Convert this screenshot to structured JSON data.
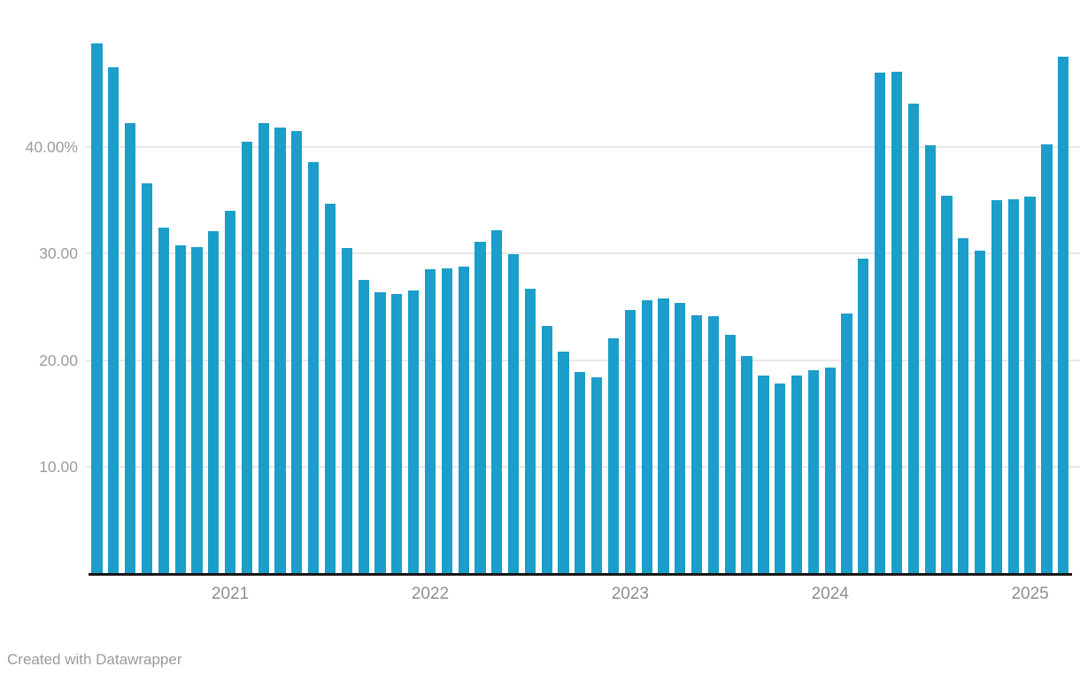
{
  "chart_data": {
    "type": "bar",
    "title": "",
    "xlabel": "",
    "ylabel": "",
    "unit": "percent",
    "ylim": [
      0,
      50.5
    ],
    "grid": "horizontal",
    "legend": "none",
    "values": [
      49.7,
      47.4,
      42.2,
      36.6,
      32.4,
      30.8,
      30.6,
      32.1,
      34.0,
      40.5,
      42.2,
      41.8,
      41.5,
      38.6,
      34.7,
      30.5,
      27.5,
      26.4,
      26.2,
      26.5,
      28.5,
      28.6,
      28.8,
      31.1,
      32.2,
      29.9,
      26.7,
      23.2,
      20.8,
      18.9,
      18.4,
      22.1,
      24.7,
      25.6,
      25.8,
      25.4,
      24.2,
      24.1,
      22.4,
      20.4,
      18.6,
      17.8,
      18.6,
      19.1,
      19.3,
      24.4,
      29.5,
      46.9,
      47.0,
      44.0,
      40.1,
      35.4,
      31.4,
      30.3,
      35.0,
      35.1,
      35.3,
      40.2,
      48.4
    ],
    "y_ticks": [
      {
        "value": 40,
        "label": "40.00%"
      },
      {
        "value": 30,
        "label": "30.00"
      },
      {
        "value": 20,
        "label": "20.00"
      },
      {
        "value": 10,
        "label": "10.00"
      }
    ],
    "x_ticks": [
      {
        "bar_index": 9,
        "label": "2021"
      },
      {
        "bar_index": 21,
        "label": "2022"
      },
      {
        "bar_index": 33,
        "label": "2023"
      },
      {
        "bar_index": 45,
        "label": "2024"
      },
      {
        "bar_index": 57,
        "label": "2025"
      }
    ]
  },
  "footer": {
    "credit": "Created with Datawrapper"
  },
  "colors": {
    "bar": "#1b9ec9",
    "gridline": "#e8e8e8",
    "axis_line": "#161616",
    "y_tick_text": "#9c9c9c",
    "x_tick_text": "#8f8f8f",
    "credit_text": "#9b9b9b",
    "background": "#ffffff"
  }
}
